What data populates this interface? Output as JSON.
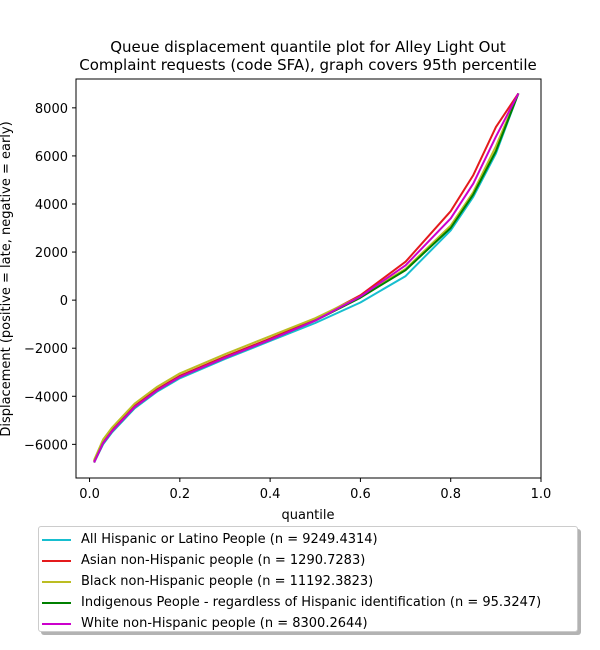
{
  "chart_data": {
    "type": "line",
    "title_line1": "Queue displacement quantile plot for Alley Light Out",
    "title_line2": "Complaint  requests (code SFA), graph covers 95th percentile",
    "xlabel": "quantile",
    "ylabel": "Displacement (positive = late, negative = early)",
    "xlim": [
      -0.03,
      1.0
    ],
    "ylim": [
      -7400,
      9200
    ],
    "xticks": [
      0.0,
      0.2,
      0.4,
      0.6,
      0.8,
      1.0
    ],
    "xtick_labels": [
      "0.0",
      "0.2",
      "0.4",
      "0.6",
      "0.8",
      "1.0"
    ],
    "yticks": [
      -6000,
      -4000,
      -2000,
      0,
      2000,
      4000,
      6000,
      8000
    ],
    "ytick_labels": [
      "−6000",
      "−4000",
      "−2000",
      "0",
      "2000",
      "4000",
      "6000",
      "8000"
    ],
    "grid": false,
    "legend_position": "below",
    "x": [
      0.01,
      0.03,
      0.05,
      0.1,
      0.15,
      0.2,
      0.3,
      0.4,
      0.5,
      0.6,
      0.7,
      0.8,
      0.85,
      0.9,
      0.95
    ],
    "series": [
      {
        "name": "All Hispanic or Latino People (n = 9249.4314)",
        "color": "#17becf",
        "values": [
          -6750,
          -6000,
          -5500,
          -4500,
          -3800,
          -3250,
          -2450,
          -1700,
          -950,
          -100,
          1000,
          2900,
          4300,
          6100,
          8600
        ]
      },
      {
        "name": "Asian non-Hispanic people (n = 1290.7283)",
        "color": "#e41a1c",
        "values": [
          -6700,
          -5900,
          -5400,
          -4400,
          -3700,
          -3150,
          -2350,
          -1600,
          -800,
          200,
          1600,
          3700,
          5200,
          7200,
          8600
        ]
      },
      {
        "name": "Black non-Hispanic people (n = 11192.3823)",
        "color": "#bcbd22",
        "values": [
          -6650,
          -5800,
          -5300,
          -4300,
          -3600,
          -3050,
          -2250,
          -1500,
          -750,
          150,
          1300,
          3100,
          4500,
          6400,
          8600
        ]
      },
      {
        "name": "Indigenous People - regardless of Hispanic identification (n = 95.3247)",
        "color": "#008000",
        "values": [
          -6750,
          -5950,
          -5450,
          -4450,
          -3750,
          -3200,
          -2400,
          -1650,
          -850,
          100,
          1250,
          3000,
          4400,
          6200,
          8600
        ]
      },
      {
        "name": "White non-Hispanic people (n = 8300.2644)",
        "color": "#cc00cc",
        "values": [
          -6750,
          -5950,
          -5450,
          -4450,
          -3750,
          -3200,
          -2400,
          -1650,
          -850,
          150,
          1450,
          3400,
          4850,
          6800,
          8600
        ]
      }
    ]
  }
}
